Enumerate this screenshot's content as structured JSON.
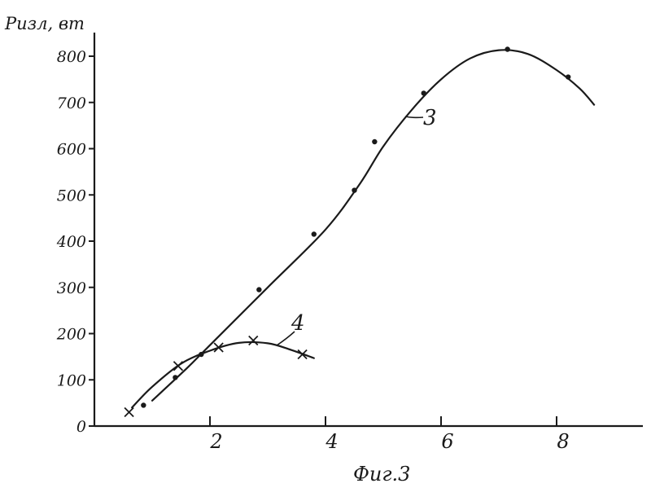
{
  "chart_data": {
    "type": "line",
    "ylabel": "Pизл, вт",
    "caption": "Фиг.3",
    "xlim": [
      0,
      9.4
    ],
    "ylim": [
      0,
      850
    ],
    "x_ticks": [
      2,
      4,
      6,
      8
    ],
    "x_tick_labels": [
      "2",
      "4",
      "6",
      "8"
    ],
    "y_ticks": [
      0,
      100,
      200,
      300,
      400,
      500,
      600,
      700,
      800
    ],
    "y_tick_labels": [
      "0",
      "100",
      "200",
      "300",
      "400",
      "500",
      "600",
      "700",
      "800"
    ],
    "series": [
      {
        "name": "3",
        "marker": "dot",
        "points": [
          {
            "x": 0.85,
            "y": 45
          },
          {
            "x": 1.4,
            "y": 105
          },
          {
            "x": 1.85,
            "y": 155
          },
          {
            "x": 2.85,
            "y": 295
          },
          {
            "x": 3.8,
            "y": 415
          },
          {
            "x": 4.5,
            "y": 510
          },
          {
            "x": 4.85,
            "y": 615
          },
          {
            "x": 5.7,
            "y": 720
          },
          {
            "x": 7.15,
            "y": 815
          },
          {
            "x": 8.2,
            "y": 755
          }
        ],
        "curve": [
          {
            "x": 1.0,
            "y": 55
          },
          {
            "x": 1.6,
            "y": 125
          },
          {
            "x": 2.0,
            "y": 175
          },
          {
            "x": 3.0,
            "y": 300
          },
          {
            "x": 4.0,
            "y": 425
          },
          {
            "x": 4.6,
            "y": 525
          },
          {
            "x": 5.0,
            "y": 605
          },
          {
            "x": 5.5,
            "y": 685
          },
          {
            "x": 6.0,
            "y": 750
          },
          {
            "x": 6.5,
            "y": 795
          },
          {
            "x": 7.0,
            "y": 813
          },
          {
            "x": 7.5,
            "y": 805
          },
          {
            "x": 8.0,
            "y": 770
          },
          {
            "x": 8.4,
            "y": 730
          },
          {
            "x": 8.65,
            "y": 695
          }
        ]
      },
      {
        "name": "4",
        "marker": "cross",
        "points": [
          {
            "x": 0.6,
            "y": 30
          },
          {
            "x": 1.45,
            "y": 130
          },
          {
            "x": 2.15,
            "y": 170
          },
          {
            "x": 2.75,
            "y": 185
          },
          {
            "x": 3.6,
            "y": 155
          }
        ],
        "curve": [
          {
            "x": 0.65,
            "y": 40
          },
          {
            "x": 1.0,
            "y": 85
          },
          {
            "x": 1.5,
            "y": 135
          },
          {
            "x": 2.0,
            "y": 163
          },
          {
            "x": 2.5,
            "y": 180
          },
          {
            "x": 3.0,
            "y": 179
          },
          {
            "x": 3.4,
            "y": 165
          },
          {
            "x": 3.8,
            "y": 147
          }
        ]
      }
    ]
  }
}
